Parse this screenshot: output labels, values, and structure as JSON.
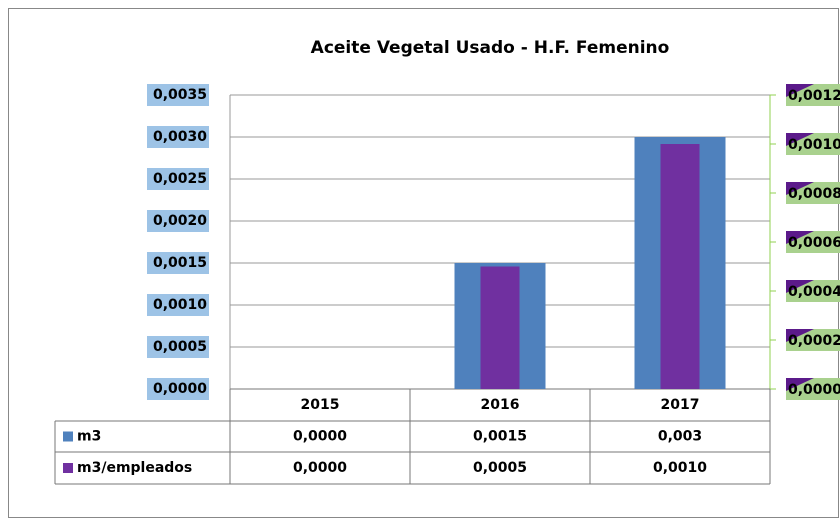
{
  "chart_data": {
    "type": "bar",
    "title": "Aceite Vegetal Usado - H.F. Femenino",
    "categories": [
      "2015",
      "2016",
      "2017"
    ],
    "series": [
      {
        "name": "m3",
        "color": "#4f81bd",
        "values": [
          0,
          0.0015,
          0.003
        ],
        "value_labels": [
          "0,0000",
          "0,0015",
          "0,003"
        ]
      },
      {
        "name": "m3/empleados",
        "color": "#7030a0",
        "axis": "y2",
        "values": [
          0,
          0.0005,
          0.001
        ],
        "value_labels": [
          "0,0000",
          "0,0005",
          "0,0010"
        ]
      }
    ],
    "ylim": [
      0,
      0.0035
    ],
    "yticks": [
      {
        "value": 0,
        "label": "0,0000"
      },
      {
        "value": 0.0005,
        "label": "0,0005"
      },
      {
        "value": 0.001,
        "label": "0,0010"
      },
      {
        "value": 0.0015,
        "label": "0,0015"
      },
      {
        "value": 0.002,
        "label": "0,0020"
      },
      {
        "value": 0.0025,
        "label": "0,0025"
      },
      {
        "value": 0.003,
        "label": "0,0030"
      },
      {
        "value": 0.0035,
        "label": "0,0035"
      }
    ],
    "y2lim": [
      0,
      0.0012
    ],
    "y2ticks": [
      {
        "value": 0,
        "label": "0,0000"
      },
      {
        "value": 0.0002,
        "label": "0,0002"
      },
      {
        "value": 0.0004,
        "label": "0,0004"
      },
      {
        "value": 0.0006,
        "label": "0,0006"
      },
      {
        "value": 0.0008,
        "label": "0,0008"
      },
      {
        "value": 0.001,
        "label": "0,0010"
      },
      {
        "value": 0.0012,
        "label": "0,0012"
      }
    ],
    "grid": true
  }
}
